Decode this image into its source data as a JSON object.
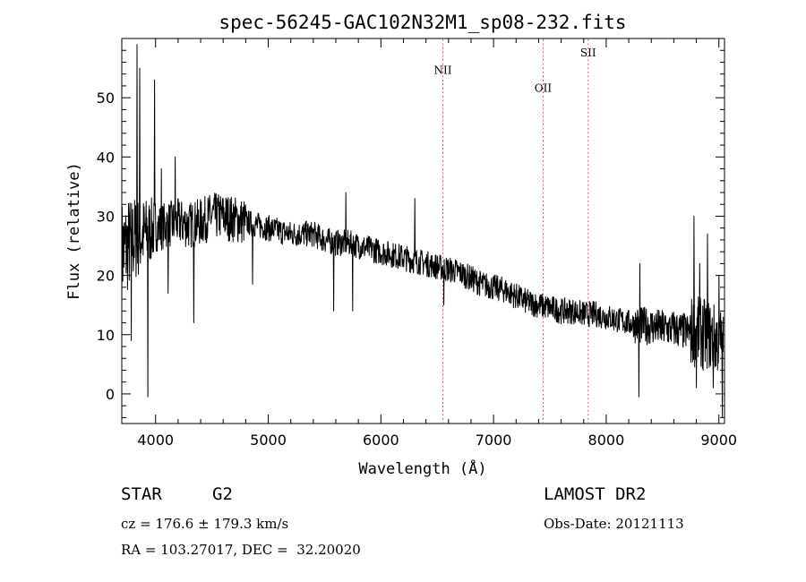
{
  "chart_data": {
    "type": "line",
    "title": "spec-56245-GAC102N32M1_sp08-232.fits",
    "xlabel": "Wavelength (Å)",
    "ylabel": "Flux (relative)",
    "xlim": [
      3700,
      9050
    ],
    "ylim": [
      -5,
      60
    ],
    "xticks": [
      4000,
      5000,
      6000,
      7000,
      8000,
      9000
    ],
    "yticks": [
      0,
      10,
      20,
      30,
      40,
      50
    ],
    "xtick_labels": [
      "4000",
      "5000",
      "6000",
      "7000",
      "8000",
      "9000"
    ],
    "ytick_labels": [
      "0",
      "10",
      "20",
      "30",
      "40",
      "50"
    ],
    "grid": false,
    "line_color": "#000000",
    "marker_color": "#d63b3b",
    "spectrum": {
      "x": [
        3700,
        3800,
        3900,
        4000,
        4100,
        4200,
        4300,
        4400,
        4500,
        4600,
        4700,
        4800,
        4900,
        5000,
        5100,
        5200,
        5300,
        5400,
        5500,
        5600,
        5700,
        5800,
        5900,
        6000,
        6100,
        6200,
        6300,
        6400,
        6500,
        6600,
        6700,
        6800,
        6900,
        7000,
        7100,
        7200,
        7300,
        7400,
        7500,
        7600,
        7700,
        7800,
        7900,
        8000,
        8100,
        8200,
        8300,
        8400,
        8500,
        8600,
        8700,
        8800,
        8900,
        9000
      ],
      "y": [
        24,
        26,
        27,
        28,
        28.5,
        29,
        28.5,
        29,
        30,
        30,
        29.5,
        29,
        28.5,
        28,
        27.5,
        27,
        27,
        27,
        26,
        25.5,
        25.5,
        25,
        24.5,
        24,
        23.5,
        23,
        22.5,
        22,
        21.5,
        21,
        20.5,
        19.5,
        18.5,
        18,
        17.5,
        16.5,
        15.5,
        15,
        14.5,
        14,
        14,
        13.5,
        13.5,
        13,
        12.5,
        12,
        11.5,
        11.5,
        11,
        11,
        10.5,
        10.5,
        10,
        9
      ]
    },
    "spikes": [
      {
        "x": 3785,
        "y": 9
      },
      {
        "x": 3835,
        "y": 59
      },
      {
        "x": 3860,
        "y": 55
      },
      {
        "x": 3930,
        "y": -0.5
      },
      {
        "x": 3990,
        "y": 53
      },
      {
        "x": 4050,
        "y": 38
      },
      {
        "x": 4110,
        "y": 17
      },
      {
        "x": 4175,
        "y": 40
      },
      {
        "x": 4340,
        "y": 12
      },
      {
        "x": 4862,
        "y": 18.5
      },
      {
        "x": 5580,
        "y": 14
      },
      {
        "x": 5690,
        "y": 34
      },
      {
        "x": 5750,
        "y": 14
      },
      {
        "x": 6300,
        "y": 33
      },
      {
        "x": 6560,
        "y": 15
      },
      {
        "x": 8290,
        "y": -0.5
      },
      {
        "x": 8300,
        "y": 22
      },
      {
        "x": 8780,
        "y": 30
      },
      {
        "x": 8800,
        "y": 1
      },
      {
        "x": 8830,
        "y": 22
      },
      {
        "x": 8860,
        "y": 4
      },
      {
        "x": 8900,
        "y": 27
      },
      {
        "x": 8950,
        "y": 1
      },
      {
        "x": 9000,
        "y": 20
      },
      {
        "x": 9030,
        "y": -4
      }
    ],
    "lines": [
      {
        "label": "NII",
        "x": 6550,
        "y": 54
      },
      {
        "label": "OII",
        "x": 7440,
        "y": 51
      },
      {
        "label": "SII",
        "x": 7840,
        "y": 57
      }
    ]
  },
  "info": {
    "class": "STAR",
    "subclass": "G2",
    "survey": "LAMOST DR2",
    "cz": "cz = 176.6 ± 179.3 km/s",
    "obs_date": "Obs-Date: 20121113",
    "radec": "RA = 103.27017, DEC =  32.20020"
  }
}
